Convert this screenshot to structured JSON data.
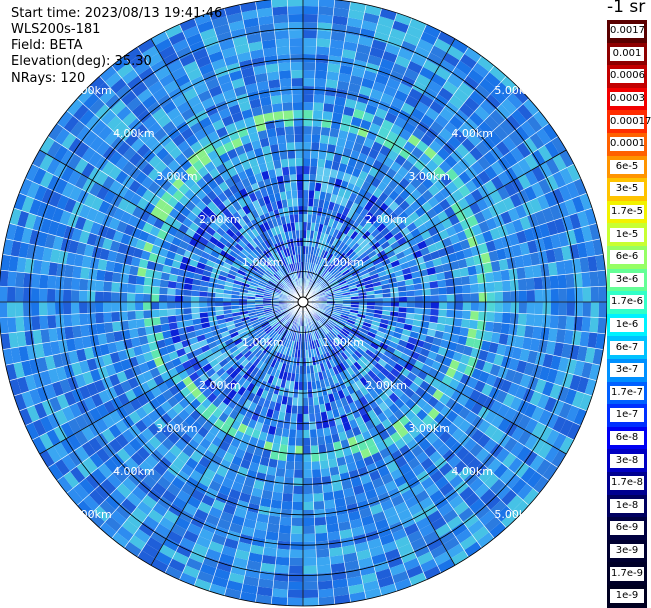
{
  "info": {
    "start_time": "Start time: 2023/08/13 19:41:46",
    "instrument": "WLS200s-181",
    "field": "Field: BETA",
    "elevation": "Elevation(deg): 35.30",
    "nrays": "NRays: 120"
  },
  "ring_labels": [
    "1.00km",
    "2.00km",
    "3.00km",
    "4.00km",
    "5.00km"
  ],
  "colorbar": {
    "unit": "-1 sr",
    "labels": [
      "0.0017",
      "0.001",
      "0.0006",
      "0.0003",
      "0.00017",
      "0.0001",
      "6e-5",
      "3e-5",
      "1.7e-5",
      "1e-5",
      "6e-6",
      "3e-6",
      "1.7e-6",
      "1e-6",
      "6e-7",
      "3e-7",
      "1.7e-7",
      "1e-7",
      "6e-8",
      "3e-8",
      "1.7e-8",
      "1e-8",
      "6e-9",
      "3e-9",
      "1.7e-9",
      "1e-9"
    ],
    "colors": [
      "#5a0000",
      "#8e0000",
      "#c20000",
      "#f20000",
      "#ff2d00",
      "#ff6100",
      "#ff9400",
      "#ffc300",
      "#f2f200",
      "#c8ff32",
      "#96ff64",
      "#64ff96",
      "#32ffc8",
      "#00f2ff",
      "#00c2ff",
      "#0090ff",
      "#0060ff",
      "#0030ff",
      "#0000f2",
      "#0000c2",
      "#000090",
      "#000060",
      "#000040",
      "#000030",
      "#000028",
      "#000020"
    ]
  },
  "scan": {
    "nrays": 120,
    "max_range_km": 5.0,
    "background_colors": [
      "#1a74e8",
      "#2d8cf0",
      "#3aa6f2",
      "#1f5fd9",
      "#46c2e6",
      "#2b7be0"
    ],
    "ring_colors": [
      "#5fe6b0",
      "#8af08a",
      "#4fd6d6",
      "#3fb8ee"
    ],
    "inner_colors": [
      "#0b22d8",
      "#1c3fe0",
      "#2a74ea",
      "#60c8f0"
    ]
  }
}
